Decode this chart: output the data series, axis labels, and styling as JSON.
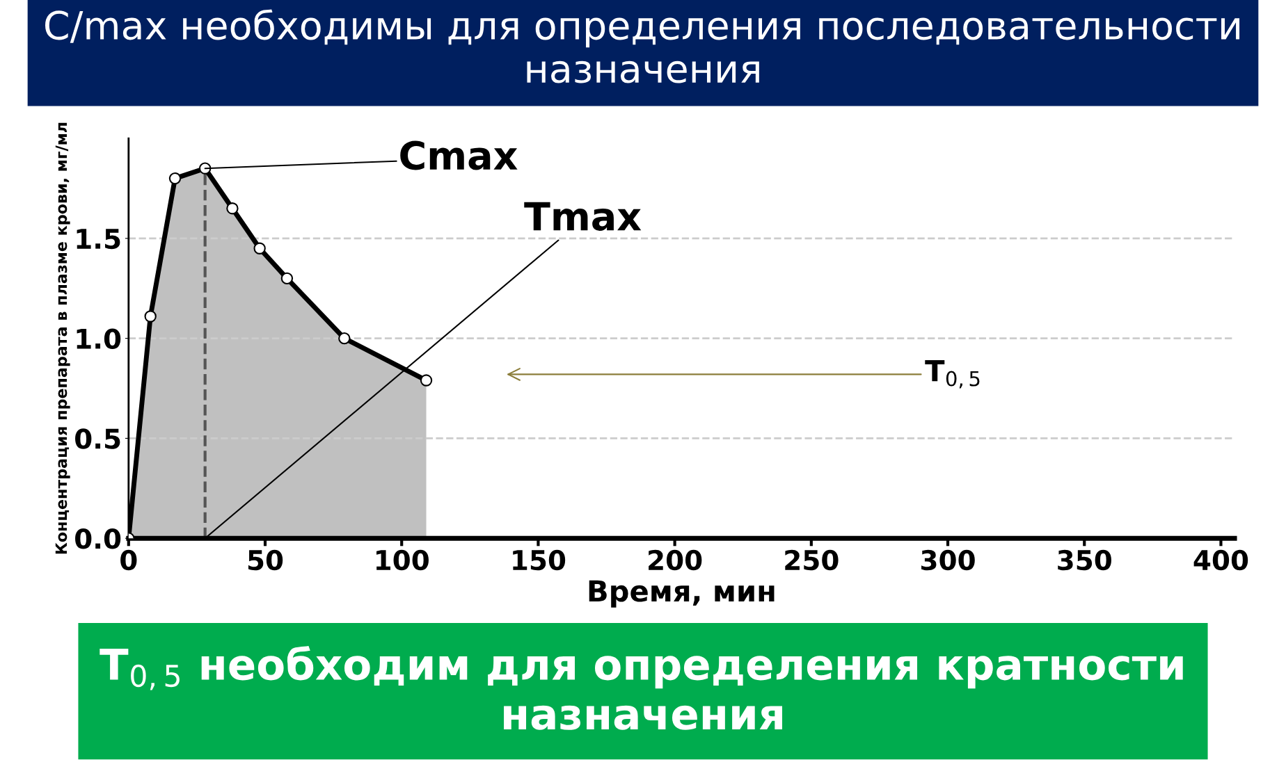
{
  "chart_data": {
    "type": "area",
    "title": "C/max необходимы для определения последовательности назначения",
    "xlabel": "Время, мин",
    "ylabel": "Концентрация препарата в плазме крови, мг/мл",
    "x": [
      0,
      8,
      17,
      28,
      38,
      48,
      58,
      79,
      109
    ],
    "series": [
      {
        "color": "#000000",
        "values": [
          0,
          1.11,
          1.8,
          1.85,
          1.65,
          1.45,
          1.3,
          1.0,
          0.79
        ]
      }
    ],
    "xlim": [
      0,
      405
    ],
    "xticks": [
      0,
      50,
      100,
      150,
      200,
      250,
      300,
      350,
      400
    ],
    "ylim": [
      0,
      2.0
    ],
    "yticks": [
      {
        "value": 0,
        "label": "0.0"
      },
      0.5,
      {
        "value": 1.0,
        "label": "1.0"
      },
      1.5
    ],
    "grid": "y",
    "marker": "circle",
    "line_style": "solid",
    "ref_lines": [
      {
        "axis": "x",
        "value": 28,
        "line_style": "dashed",
        "color": "#555555"
      }
    ],
    "annotations": [
      "Cmax",
      {
        "text": "Tmax",
        "x": 28,
        "y": 0
      },
      "T$_{0,5}$",
      "T$_{0,5}$ необходим для определения кратности назначения"
    ]
  }
}
